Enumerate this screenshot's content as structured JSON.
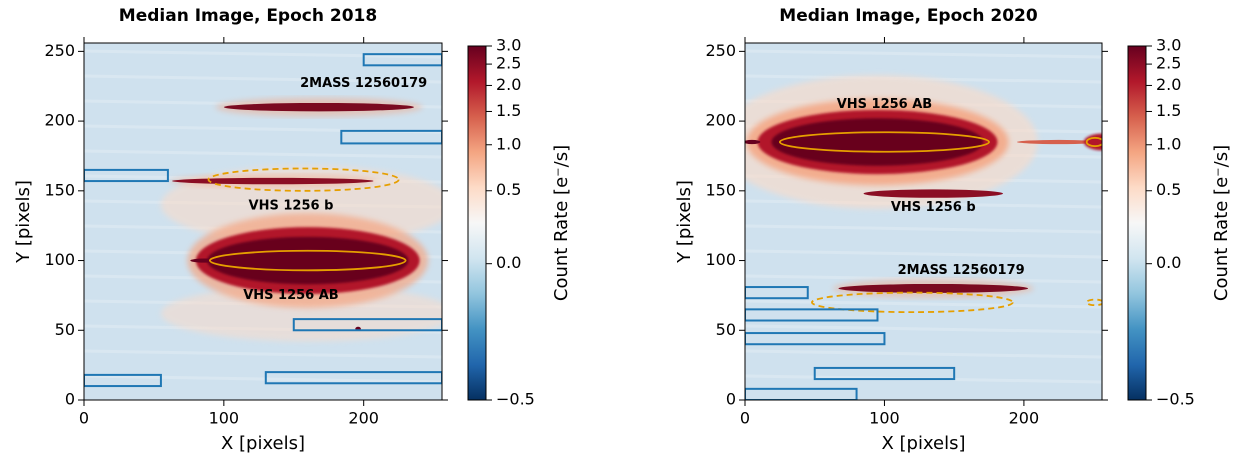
{
  "chart_data": [
    {
      "type": "image",
      "title": "Median Image, Epoch 2018",
      "xlabel": "X [pixels]",
      "ylabel": "Y [pixels]",
      "xlim": [
        0,
        256
      ],
      "ylim": [
        0,
        256
      ],
      "xticks": [
        0,
        100,
        200
      ],
      "yticks": [
        0,
        50,
        100,
        150,
        200,
        250
      ],
      "annotations": [
        "2MASS 12560179",
        "VHS 1256 b",
        "VHS 1256 AB"
      ],
      "colorbar": {
        "label": "Count Rate [e⁻/s]",
        "lim": [
          -0.5,
          3.0
        ],
        "stretch": "asinh",
        "colormap": "RdBu_r",
        "ticks": [
          {
            "value": -0.5,
            "label": "−0.5"
          },
          {
            "value": 0,
            "label": "0.0"
          },
          0.5,
          {
            "value": 1,
            "label": "1.0"
          },
          1.5,
          {
            "value": 2,
            "label": "2.0"
          },
          2.5,
          {
            "value": 3,
            "label": "3.0"
          }
        ]
      }
    },
    {
      "type": "image",
      "title": "Median Image, Epoch 2020",
      "xlabel": "X [pixels]",
      "ylabel": "Y [pixels]",
      "xlim": [
        0,
        256
      ],
      "ylim": [
        0,
        256
      ],
      "xticks": [
        0,
        100,
        200
      ],
      "yticks": [
        0,
        50,
        100,
        150,
        200,
        250
      ],
      "annotations": [
        "VHS 1256 AB",
        "VHS 1256 b",
        "2MASS 12560179"
      ],
      "colorbar": {
        "label": "Count Rate [e⁻/s]",
        "lim": [
          -0.5,
          3.0
        ],
        "stretch": "asinh",
        "colormap": "RdBu_r",
        "ticks": [
          {
            "value": -0.5,
            "label": "−0.5"
          },
          {
            "value": 0,
            "label": "0.0"
          },
          0.5,
          {
            "value": 1,
            "label": "1.0"
          },
          1.5,
          {
            "value": 2,
            "label": "2.0"
          },
          2.5,
          {
            "value": 3,
            "label": "3.0"
          }
        ]
      }
    }
  ]
}
